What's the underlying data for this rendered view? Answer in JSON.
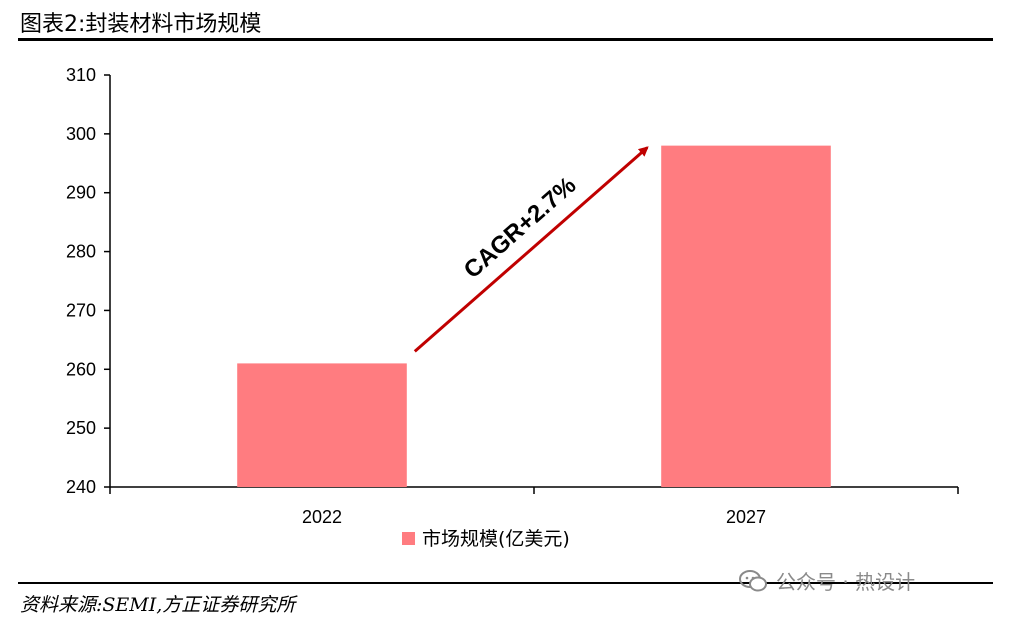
{
  "header": {
    "title": "图表2:封装材料市场规模"
  },
  "footer": {
    "source": "资料来源:SEMI,方正证券研究所"
  },
  "watermark": {
    "text": "公众号 · 热设计",
    "icon": "wechat-icon"
  },
  "chart_data": {
    "type": "bar",
    "categories": [
      "2022",
      "2027"
    ],
    "series": [
      {
        "name": "市场规模(亿美元)",
        "values": [
          261,
          298
        ],
        "color": "#ff7c80"
      }
    ],
    "ylim": [
      240,
      310
    ],
    "yticks": [
      240,
      250,
      260,
      270,
      280,
      290,
      300,
      310
    ],
    "title": "",
    "xlabel": "",
    "ylabel": "",
    "legend_position": "bottom",
    "grid": false,
    "annotation": {
      "text": "CAGR+2.7%",
      "arrow_color": "#c00000"
    }
  }
}
